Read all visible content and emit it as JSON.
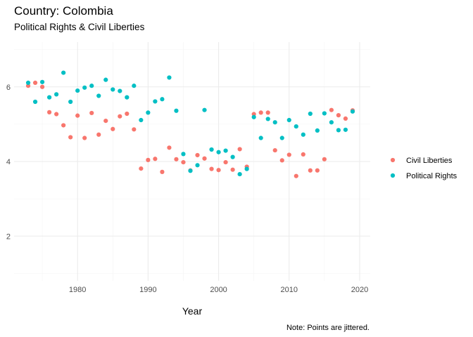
{
  "chart_data": {
    "type": "scatter",
    "title": "Country: Colombia",
    "subtitle": "Political Rights & Civil Liberties",
    "xlabel": "Year",
    "ylabel": "",
    "caption": "Note: Points are jittered.",
    "xlim": [
      1971,
      2021.5
    ],
    "ylim": [
      0.8,
      7.2
    ],
    "xticks": [
      1980,
      1990,
      2000,
      2010,
      2020
    ],
    "yticks": [
      2,
      4,
      6
    ],
    "grid": true,
    "legend_position": "right",
    "series": [
      {
        "name": "Civil Liberties",
        "color": "#F8766D",
        "points": [
          [
            1973,
            6.03
          ],
          [
            1974,
            6.11
          ],
          [
            1975,
            6.0
          ],
          [
            1976,
            5.32
          ],
          [
            1977,
            5.27
          ],
          [
            1978,
            4.97
          ],
          [
            1979,
            4.65
          ],
          [
            1980,
            5.23
          ],
          [
            1981,
            4.63
          ],
          [
            1982,
            5.3
          ],
          [
            1983,
            4.72
          ],
          [
            1984,
            5.09
          ],
          [
            1985,
            4.87
          ],
          [
            1986,
            5.21
          ],
          [
            1987,
            5.28
          ],
          [
            1988,
            4.86
          ],
          [
            1989,
            3.81
          ],
          [
            1990,
            4.04
          ],
          [
            1991,
            4.07
          ],
          [
            1992,
            3.72
          ],
          [
            1993,
            4.37
          ],
          [
            1994,
            4.06
          ],
          [
            1995,
            3.98
          ],
          [
            1996,
            3.76
          ],
          [
            1997,
            4.17
          ],
          [
            1998,
            4.08
          ],
          [
            1999,
            3.8
          ],
          [
            2000,
            3.77
          ],
          [
            2001,
            3.98
          ],
          [
            2002,
            3.78
          ],
          [
            2003,
            4.33
          ],
          [
            2004,
            3.86
          ],
          [
            2005,
            5.27
          ],
          [
            2006,
            5.31
          ],
          [
            2007,
            5.31
          ],
          [
            2008,
            4.3
          ],
          [
            2009,
            4.03
          ],
          [
            2010,
            4.18
          ],
          [
            2011,
            3.61
          ],
          [
            2012,
            4.19
          ],
          [
            2013,
            3.76
          ],
          [
            2014,
            3.76
          ],
          [
            2015,
            4.06
          ],
          [
            2016,
            5.38
          ],
          [
            2017,
            5.24
          ],
          [
            2018,
            5.15
          ],
          [
            2019,
            5.37
          ]
        ]
      },
      {
        "name": "Political Rights",
        "color": "#00BFC4",
        "points": [
          [
            1973,
            6.11
          ],
          [
            1974,
            5.6
          ],
          [
            1975,
            6.13
          ],
          [
            1976,
            5.72
          ],
          [
            1977,
            5.8
          ],
          [
            1978,
            6.38
          ],
          [
            1979,
            5.6
          ],
          [
            1980,
            5.9
          ],
          [
            1981,
            5.98
          ],
          [
            1982,
            6.03
          ],
          [
            1983,
            5.76
          ],
          [
            1984,
            6.19
          ],
          [
            1985,
            5.93
          ],
          [
            1986,
            5.89
          ],
          [
            1987,
            5.72
          ],
          [
            1988,
            6.03
          ],
          [
            1989,
            5.11
          ],
          [
            1990,
            5.31
          ],
          [
            1991,
            5.61
          ],
          [
            1992,
            5.67
          ],
          [
            1993,
            6.25
          ],
          [
            1994,
            5.36
          ],
          [
            1995,
            4.2
          ],
          [
            1996,
            3.75
          ],
          [
            1997,
            3.9
          ],
          [
            1998,
            5.38
          ],
          [
            1999,
            4.32
          ],
          [
            2000,
            4.25
          ],
          [
            2001,
            4.29
          ],
          [
            2002,
            4.12
          ],
          [
            2003,
            3.66
          ],
          [
            2004,
            3.8
          ],
          [
            2005,
            5.19
          ],
          [
            2006,
            4.63
          ],
          [
            2007,
            5.14
          ],
          [
            2008,
            5.05
          ],
          [
            2009,
            4.63
          ],
          [
            2010,
            5.11
          ],
          [
            2011,
            4.94
          ],
          [
            2012,
            4.72
          ],
          [
            2013,
            5.28
          ],
          [
            2014,
            4.83
          ],
          [
            2015,
            5.29
          ],
          [
            2016,
            5.05
          ],
          [
            2017,
            4.84
          ],
          [
            2018,
            4.85
          ],
          [
            2019,
            5.34
          ]
        ]
      }
    ]
  }
}
